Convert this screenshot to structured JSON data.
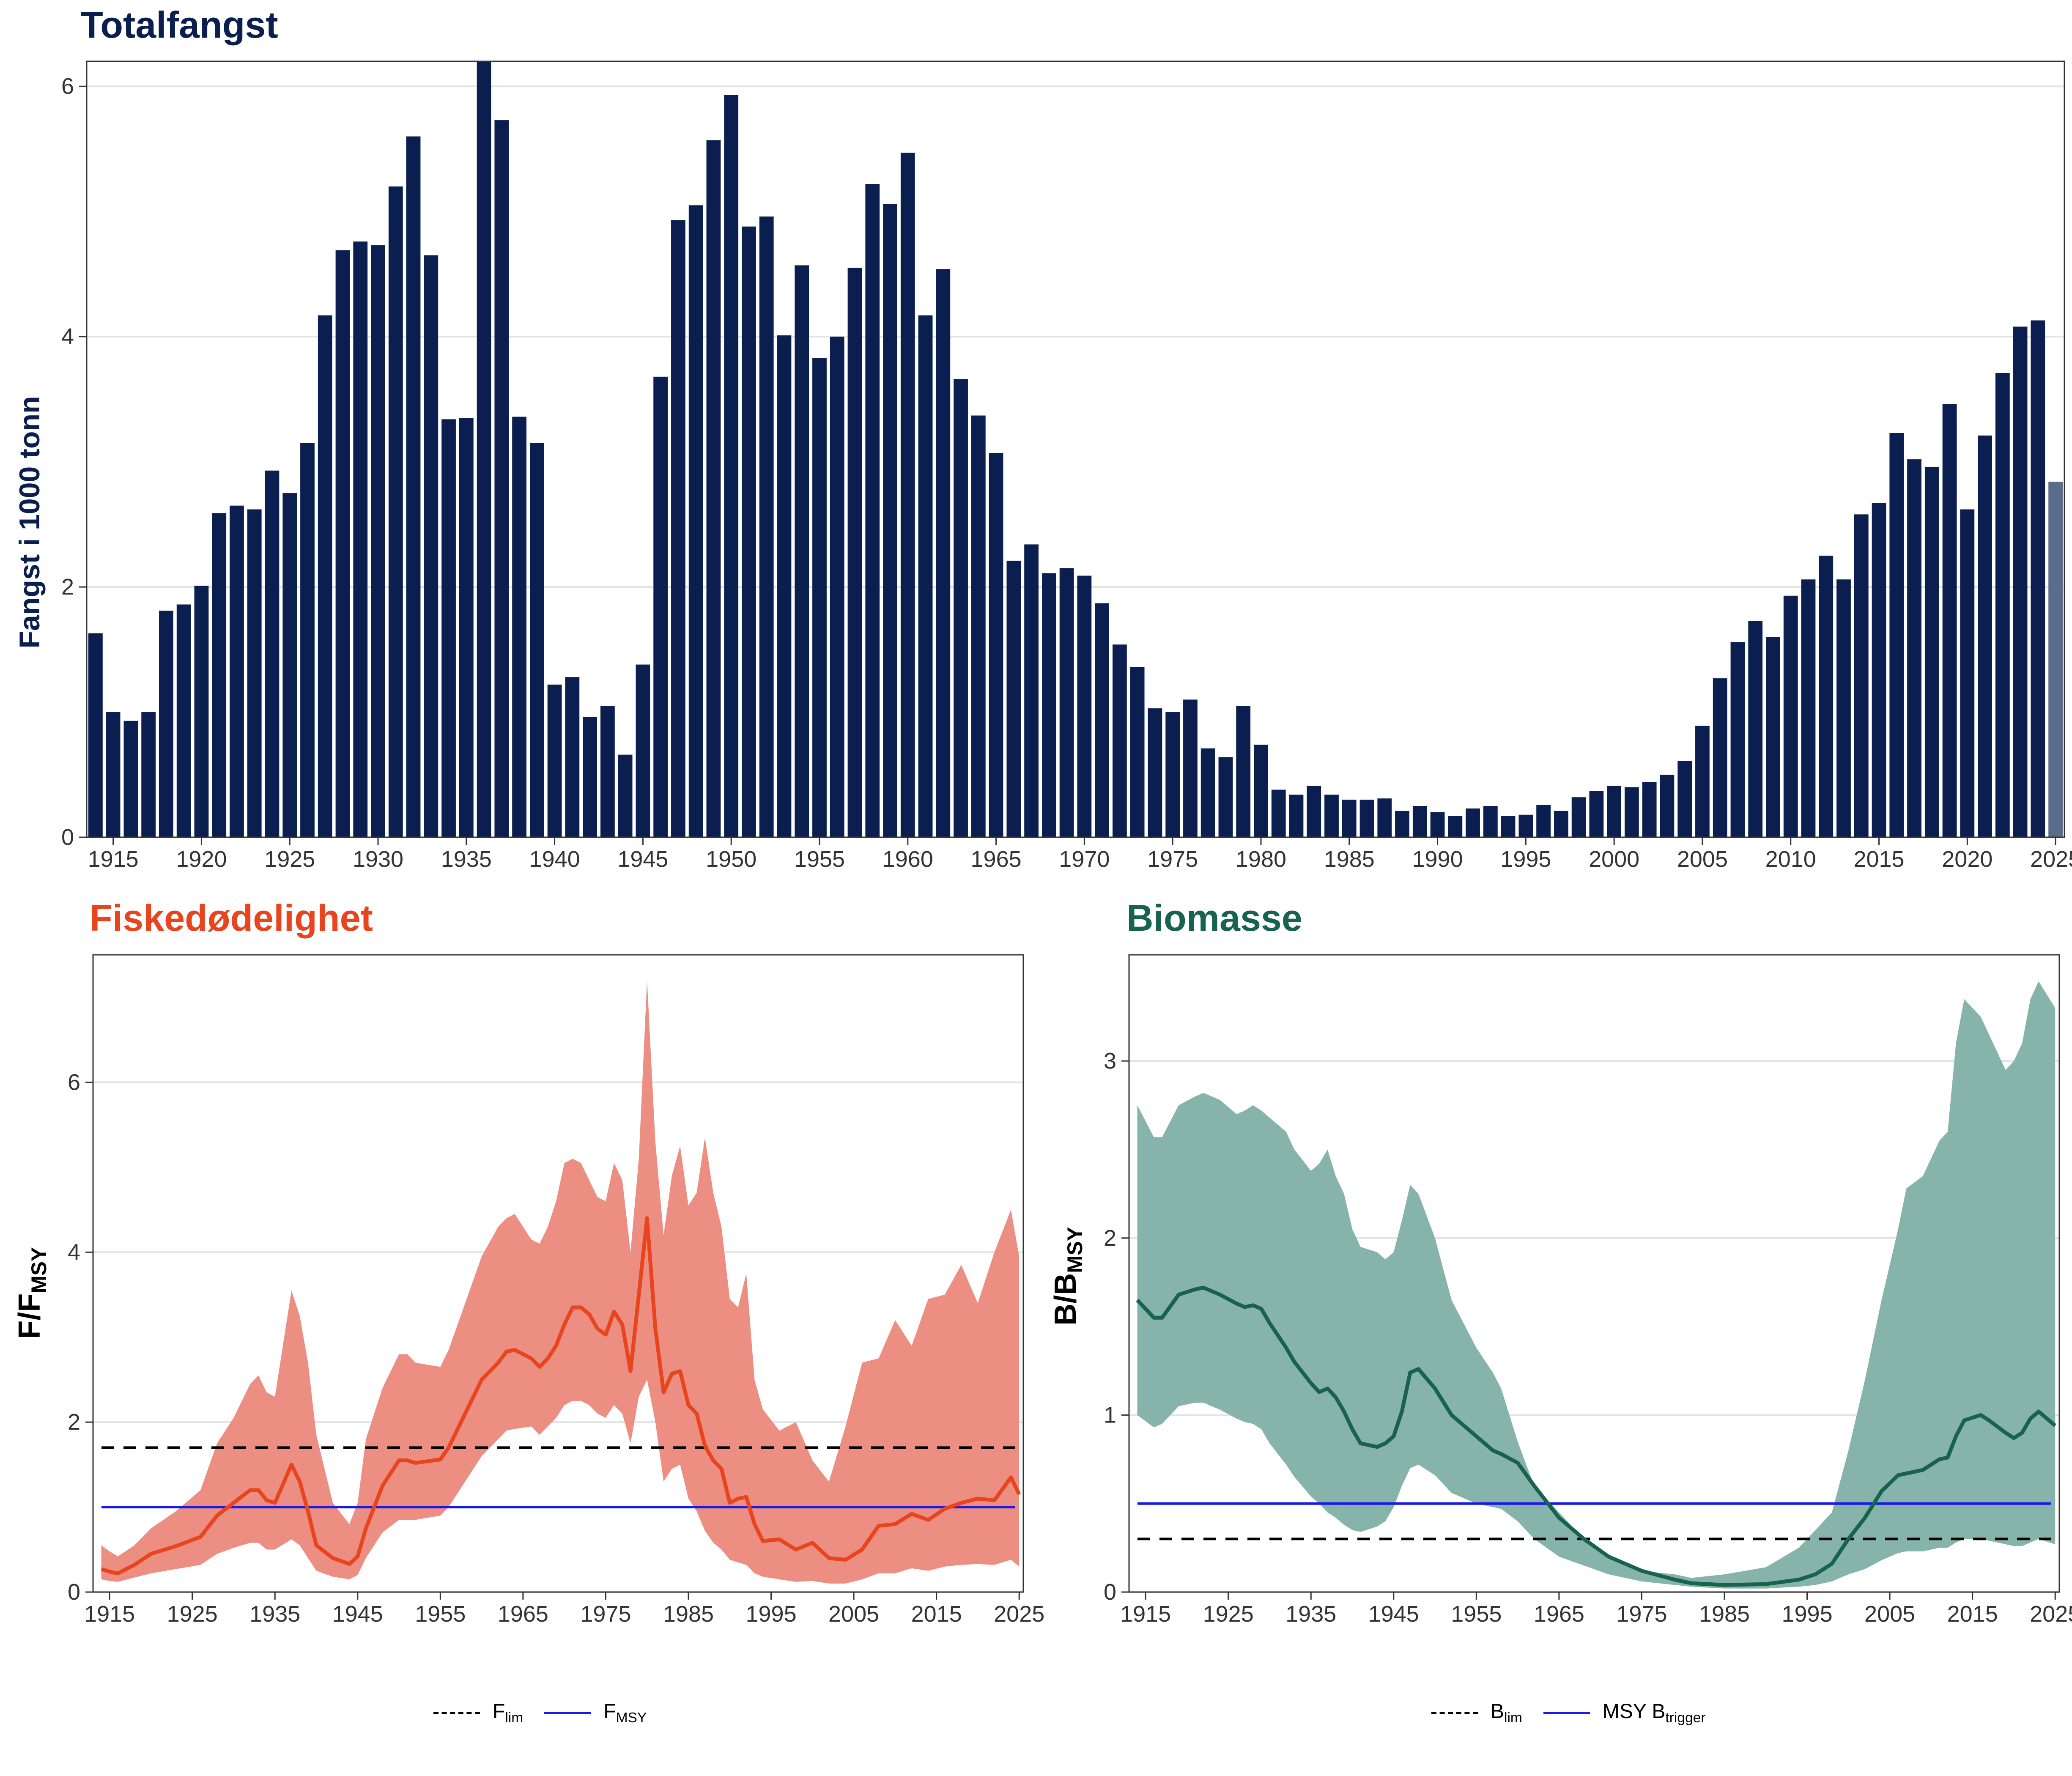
{
  "top": {
    "title": "Totalfangst",
    "ylabel": "Fangst i 1000 tonn"
  },
  "left": {
    "title": "Fiskedødelighet",
    "ylabel_main": "F/F",
    "ylabel_sub": "MSY",
    "legend": {
      "flim_main": "F",
      "flim_sub": "lim",
      "fmsy_main": "F",
      "fmsy_sub": "MSY"
    }
  },
  "right": {
    "title": "Biomasse",
    "ylabel_main": "B/B",
    "ylabel_sub": "MSY",
    "legend": {
      "blim_main": "B",
      "blim_sub": "lim",
      "btrig_main": "MSY B",
      "btrig_sub": "trigger"
    }
  },
  "colors": {
    "navy": "#0a1f4f",
    "navy_light": "#5b6b8a",
    "red_line": "#e8451e",
    "red_fill": "#ec8f82",
    "green_line": "#17634f",
    "green_fill": "#86b4aa",
    "blue": "#1a1ae6",
    "grid": "#e3e3e3"
  },
  "chart_data": [
    {
      "type": "bar",
      "title": "Totalfangst",
      "xlabel": "",
      "ylabel": "Fangst i 1000 tonn",
      "ylim": [
        0,
        6.2
      ],
      "yticks": [
        0,
        2,
        4,
        6
      ],
      "xticks": [
        1915,
        1920,
        1925,
        1930,
        1935,
        1940,
        1945,
        1950,
        1955,
        1960,
        1965,
        1970,
        1975,
        1980,
        1985,
        1990,
        1995,
        2000,
        2005,
        2010,
        2015,
        2020,
        2025
      ],
      "start_year": 1914,
      "highlight_last": true,
      "values": [
        1.63,
        1.0,
        0.93,
        1.0,
        1.81,
        1.86,
        2.01,
        2.59,
        2.65,
        2.62,
        2.93,
        2.75,
        3.15,
        4.17,
        4.69,
        4.76,
        4.73,
        5.2,
        5.6,
        4.65,
        3.34,
        3.35,
        6.2,
        5.73,
        3.36,
        3.15,
        1.22,
        1.28,
        0.96,
        1.05,
        0.66,
        1.38,
        3.68,
        4.93,
        5.05,
        5.57,
        5.93,
        4.88,
        4.96,
        4.01,
        4.57,
        3.83,
        4.0,
        4.55,
        5.22,
        5.06,
        5.47,
        4.17,
        4.54,
        3.66,
        3.37,
        3.07,
        2.21,
        2.34,
        2.11,
        2.15,
        2.09,
        1.87,
        1.54,
        1.36,
        1.03,
        1.0,
        1.1,
        0.71,
        0.64,
        1.05,
        0.74,
        0.38,
        0.34,
        0.41,
        0.34,
        0.3,
        0.3,
        0.31,
        0.21,
        0.25,
        0.2,
        0.17,
        0.23,
        0.25,
        0.17,
        0.18,
        0.26,
        0.21,
        0.32,
        0.37,
        0.41,
        0.4,
        0.44,
        0.5,
        0.61,
        0.89,
        1.27,
        1.56,
        1.73,
        1.6,
        1.93,
        2.06,
        2.25,
        2.06,
        2.58,
        2.67,
        3.23,
        3.02,
        2.96,
        3.46,
        2.62,
        3.21,
        3.71,
        4.08,
        4.13,
        2.84
      ]
    },
    {
      "type": "area",
      "title": "Fiskedødelighet",
      "ylabel": "F/FMSY",
      "ylim": [
        0,
        7.5
      ],
      "yticks": [
        0,
        2,
        4,
        6
      ],
      "xticks": [
        1915,
        1925,
        1935,
        1945,
        1955,
        1965,
        1975,
        1985,
        1995,
        2005,
        2015,
        2025
      ],
      "reference_lines": [
        {
          "name": "Flim",
          "value": 1.7,
          "style": "dashed"
        },
        {
          "name": "FMSY",
          "value": 1.0,
          "style": "solid"
        }
      ],
      "x": [
        1914,
        1915,
        1916,
        1918,
        1920,
        1923,
        1926,
        1928,
        1930,
        1932,
        1933,
        1934,
        1935,
        1937,
        1938,
        1939,
        1940,
        1942,
        1944,
        1945,
        1946,
        1948,
        1950,
        1951,
        1952,
        1955,
        1956,
        1958,
        1960,
        1962,
        1963,
        1964,
        1966,
        1967,
        1968,
        1969,
        1970,
        1971,
        1972,
        1973,
        1974,
        1975,
        1976,
        1977,
        1978,
        1979,
        1980,
        1981,
        1982,
        1983,
        1984,
        1985,
        1986,
        1987,
        1988,
        1989,
        1990,
        1991,
        1992,
        1993,
        1994,
        1996,
        1998,
        2000,
        2002,
        2004,
        2006,
        2008,
        2010,
        2012,
        2014,
        2016,
        2018,
        2020,
        2022,
        2024,
        2025
      ],
      "series": [
        {
          "name": "median",
          "values": [
            0.27,
            0.24,
            0.22,
            0.32,
            0.45,
            0.54,
            0.65,
            0.9,
            1.05,
            1.2,
            1.2,
            1.08,
            1.05,
            1.5,
            1.3,
            0.95,
            0.55,
            0.4,
            0.33,
            0.42,
            0.75,
            1.25,
            1.55,
            1.55,
            1.52,
            1.56,
            1.7,
            2.1,
            2.5,
            2.7,
            2.83,
            2.85,
            2.75,
            2.65,
            2.75,
            2.9,
            3.15,
            3.35,
            3.35,
            3.27,
            3.1,
            3.03,
            3.3,
            3.15,
            2.6,
            3.5,
            4.4,
            3.1,
            2.35,
            2.57,
            2.6,
            2.2,
            2.1,
            1.72,
            1.55,
            1.45,
            1.05,
            1.1,
            1.12,
            0.8,
            0.6,
            0.62,
            0.5,
            0.58,
            0.4,
            0.38,
            0.5,
            0.78,
            0.8,
            0.92,
            0.85,
            0.98,
            1.05,
            1.1,
            1.08,
            1.35,
            1.15
          ]
        },
        {
          "name": "upper",
          "values": [
            0.55,
            0.48,
            0.42,
            0.55,
            0.75,
            0.95,
            1.2,
            1.75,
            2.05,
            2.45,
            2.55,
            2.35,
            2.3,
            3.55,
            3.25,
            2.7,
            1.85,
            1.05,
            0.8,
            1.05,
            1.8,
            2.4,
            2.8,
            2.8,
            2.7,
            2.65,
            2.85,
            3.4,
            3.95,
            4.3,
            4.4,
            4.45,
            4.15,
            4.1,
            4.3,
            4.6,
            5.05,
            5.1,
            5.05,
            4.85,
            4.65,
            4.6,
            5.05,
            4.85,
            4.0,
            5.1,
            7.2,
            5.3,
            4.2,
            4.9,
            5.25,
            4.55,
            4.7,
            5.35,
            4.7,
            4.3,
            3.45,
            3.35,
            3.75,
            2.5,
            2.15,
            1.9,
            2.0,
            1.55,
            1.3,
            1.95,
            2.7,
            2.75,
            3.2,
            2.9,
            3.45,
            3.5,
            3.85,
            3.4,
            4.0,
            4.5,
            3.95
          ]
        },
        {
          "name": "lower",
          "values": [
            0.15,
            0.13,
            0.12,
            0.17,
            0.22,
            0.27,
            0.32,
            0.45,
            0.52,
            0.58,
            0.58,
            0.5,
            0.5,
            0.62,
            0.55,
            0.4,
            0.25,
            0.18,
            0.15,
            0.2,
            0.4,
            0.7,
            0.85,
            0.85,
            0.85,
            0.9,
            1.0,
            1.3,
            1.6,
            1.8,
            1.9,
            1.92,
            1.95,
            1.85,
            1.95,
            2.05,
            2.2,
            2.25,
            2.25,
            2.2,
            2.1,
            2.05,
            2.2,
            2.1,
            1.75,
            2.3,
            2.5,
            2.0,
            1.3,
            1.45,
            1.5,
            1.1,
            0.95,
            0.72,
            0.58,
            0.5,
            0.38,
            0.35,
            0.32,
            0.22,
            0.18,
            0.15,
            0.12,
            0.13,
            0.1,
            0.1,
            0.15,
            0.22,
            0.22,
            0.28,
            0.25,
            0.3,
            0.32,
            0.33,
            0.32,
            0.38,
            0.3
          ]
        }
      ]
    },
    {
      "type": "area",
      "title": "Biomasse",
      "ylabel": "B/BMSY",
      "ylim": [
        0,
        3.6
      ],
      "yticks": [
        0,
        1,
        2,
        3
      ],
      "xticks": [
        1915,
        1925,
        1935,
        1945,
        1955,
        1965,
        1975,
        1985,
        1995,
        2005,
        2015,
        2025
      ],
      "reference_lines": [
        {
          "name": "Blim",
          "value": 0.3,
          "style": "dashed"
        },
        {
          "name": "MSY Btrigger",
          "value": 0.5,
          "style": "solid"
        }
      ],
      "x": [
        1914,
        1916,
        1917,
        1919,
        1921,
        1922,
        1924,
        1926,
        1927,
        1928,
        1929,
        1930,
        1932,
        1933,
        1935,
        1936,
        1937,
        1938,
        1939,
        1940,
        1941,
        1943,
        1944,
        1945,
        1946,
        1947,
        1948,
        1950,
        1952,
        1955,
        1957,
        1958,
        1960,
        1962,
        1965,
        1968,
        1971,
        1975,
        1979,
        1981,
        1985,
        1990,
        1994,
        1996,
        1998,
        2000,
        2002,
        2004,
        2006,
        2007,
        2009,
        2011,
        2012,
        2013,
        2014,
        2016,
        2017,
        2019,
        2020,
        2021,
        2022,
        2023,
        2025
      ],
      "series": [
        {
          "name": "median",
          "values": [
            1.65,
            1.55,
            1.55,
            1.68,
            1.71,
            1.72,
            1.68,
            1.63,
            1.61,
            1.62,
            1.6,
            1.52,
            1.38,
            1.3,
            1.18,
            1.13,
            1.15,
            1.1,
            1.02,
            0.92,
            0.84,
            0.82,
            0.84,
            0.88,
            1.02,
            1.24,
            1.26,
            1.15,
            1.0,
            0.88,
            0.8,
            0.78,
            0.73,
            0.6,
            0.42,
            0.3,
            0.2,
            0.12,
            0.07,
            0.05,
            0.04,
            0.045,
            0.07,
            0.1,
            0.16,
            0.3,
            0.42,
            0.57,
            0.66,
            0.67,
            0.69,
            0.75,
            0.76,
            0.88,
            0.97,
            1.0,
            0.97,
            0.9,
            0.87,
            0.9,
            0.98,
            1.02,
            0.94
          ]
        },
        {
          "name": "upper",
          "values": [
            2.75,
            2.57,
            2.57,
            2.75,
            2.8,
            2.82,
            2.78,
            2.7,
            2.72,
            2.75,
            2.72,
            2.68,
            2.6,
            2.5,
            2.38,
            2.42,
            2.5,
            2.35,
            2.25,
            2.05,
            1.95,
            1.92,
            1.88,
            1.92,
            2.1,
            2.3,
            2.25,
            2.0,
            1.65,
            1.38,
            1.24,
            1.15,
            0.85,
            0.6,
            0.45,
            0.3,
            0.2,
            0.12,
            0.1,
            0.08,
            0.1,
            0.14,
            0.25,
            0.35,
            0.45,
            0.8,
            1.2,
            1.65,
            2.05,
            2.28,
            2.35,
            2.55,
            2.6,
            3.1,
            3.35,
            3.25,
            3.15,
            2.95,
            3.0,
            3.1,
            3.35,
            3.45,
            3.3
          ]
        },
        {
          "name": "lower",
          "values": [
            1.0,
            0.93,
            0.95,
            1.05,
            1.07,
            1.07,
            1.03,
            0.98,
            0.96,
            0.95,
            0.92,
            0.84,
            0.72,
            0.65,
            0.54,
            0.5,
            0.45,
            0.42,
            0.38,
            0.35,
            0.34,
            0.37,
            0.4,
            0.48,
            0.6,
            0.7,
            0.72,
            0.66,
            0.56,
            0.5,
            0.48,
            0.47,
            0.4,
            0.3,
            0.2,
            0.15,
            0.1,
            0.06,
            0.04,
            0.03,
            0.02,
            0.02,
            0.03,
            0.04,
            0.06,
            0.1,
            0.13,
            0.18,
            0.22,
            0.23,
            0.23,
            0.25,
            0.25,
            0.28,
            0.3,
            0.3,
            0.29,
            0.27,
            0.26,
            0.26,
            0.28,
            0.3,
            0.27
          ]
        }
      ]
    }
  ]
}
